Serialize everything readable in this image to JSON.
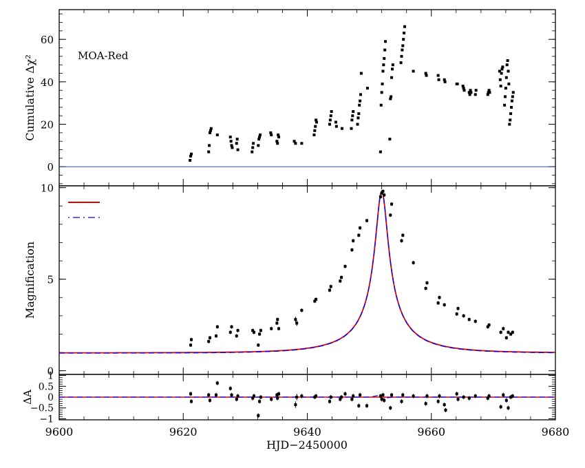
{
  "chart_data": [
    {
      "panel": "top",
      "type": "scatter",
      "annotation": "MOA-Red",
      "ylabel": "Cumulative Δχ²",
      "ylim": [
        -9,
        74
      ],
      "yticks": [
        0,
        20,
        40,
        60
      ],
      "reference_line": 0,
      "points": [
        [
          9621.1,
          3
        ],
        [
          9621.2,
          5
        ],
        [
          9621.3,
          6
        ],
        [
          9624.1,
          7
        ],
        [
          9624.2,
          10
        ],
        [
          9624.3,
          16
        ],
        [
          9624.4,
          17
        ],
        [
          9624.5,
          18
        ],
        [
          9625.5,
          15
        ],
        [
          9627.6,
          14
        ],
        [
          9627.7,
          12
        ],
        [
          9627.8,
          10
        ],
        [
          9627.9,
          9
        ],
        [
          9628.6,
          11
        ],
        [
          9628.7,
          13
        ],
        [
          9628.8,
          8
        ],
        [
          9631.1,
          7
        ],
        [
          9631.2,
          9
        ],
        [
          9631.3,
          11
        ],
        [
          9632.1,
          10
        ],
        [
          9632.2,
          13
        ],
        [
          9632.3,
          14
        ],
        [
          9632.4,
          15
        ],
        [
          9634.1,
          16
        ],
        [
          9634.2,
          15
        ],
        [
          9635.1,
          12
        ],
        [
          9635.2,
          11
        ],
        [
          9635.3,
          15
        ],
        [
          9635.4,
          14
        ],
        [
          9637.9,
          12
        ],
        [
          9638.1,
          11
        ],
        [
          9639.1,
          11
        ],
        [
          9641.1,
          15
        ],
        [
          9641.2,
          17
        ],
        [
          9641.3,
          19
        ],
        [
          9641.4,
          22
        ],
        [
          9641.5,
          21
        ],
        [
          9643.6,
          20
        ],
        [
          9643.7,
          22
        ],
        [
          9643.8,
          24
        ],
        [
          9643.9,
          26
        ],
        [
          9644.6,
          21
        ],
        [
          9644.7,
          19
        ],
        [
          9645.6,
          18
        ],
        [
          9647.1,
          18
        ],
        [
          9647.2,
          22
        ],
        [
          9647.3,
          24
        ],
        [
          9647.4,
          26
        ],
        [
          9648.1,
          20
        ],
        [
          9648.2,
          23
        ],
        [
          9648.3,
          25
        ],
        [
          9648.4,
          29
        ],
        [
          9648.5,
          31
        ],
        [
          9648.6,
          34
        ],
        [
          9648.7,
          44
        ],
        [
          9649.7,
          37
        ],
        [
          9651.8,
          7
        ],
        [
          9651.9,
          29
        ],
        [
          9652.0,
          35
        ],
        [
          9652.1,
          39
        ],
        [
          9652.2,
          45
        ],
        [
          9652.3,
          48
        ],
        [
          9652.4,
          51
        ],
        [
          9652.5,
          55
        ],
        [
          9652.6,
          59
        ],
        [
          9653.3,
          13
        ],
        [
          9653.4,
          32
        ],
        [
          9653.5,
          33
        ],
        [
          9653.6,
          42
        ],
        [
          9653.7,
          46
        ],
        [
          9653.8,
          48
        ],
        [
          9655.1,
          49
        ],
        [
          9655.2,
          52
        ],
        [
          9655.3,
          55
        ],
        [
          9655.4,
          57
        ],
        [
          9655.5,
          60
        ],
        [
          9655.6,
          63
        ],
        [
          9655.7,
          66
        ],
        [
          9657.1,
          45
        ],
        [
          9659.1,
          44
        ],
        [
          9659.2,
          43
        ],
        [
          9661.1,
          43
        ],
        [
          9661.2,
          41
        ],
        [
          9662.1,
          41
        ],
        [
          9662.2,
          40
        ],
        [
          9664.1,
          39
        ],
        [
          9664.2,
          39
        ],
        [
          9665.1,
          38
        ],
        [
          9665.2,
          37
        ],
        [
          9665.3,
          36
        ],
        [
          9666.1,
          35
        ],
        [
          9666.2,
          34
        ],
        [
          9666.3,
          36
        ],
        [
          9666.4,
          35
        ],
        [
          9667.1,
          34
        ],
        [
          9667.2,
          36
        ],
        [
          9669.1,
          34
        ],
        [
          9669.2,
          35
        ],
        [
          9669.3,
          36
        ],
        [
          9669.4,
          35
        ],
        [
          9671.0,
          45
        ],
        [
          9671.1,
          41
        ],
        [
          9671.2,
          38
        ],
        [
          9671.3,
          44
        ],
        [
          9671.4,
          46
        ],
        [
          9671.5,
          47
        ],
        [
          9671.8,
          29
        ],
        [
          9671.9,
          33
        ],
        [
          9672.0,
          37
        ],
        [
          9672.1,
          42
        ],
        [
          9672.2,
          48
        ],
        [
          9672.3,
          50
        ],
        [
          9672.4,
          45
        ],
        [
          9672.5,
          39
        ],
        [
          9672.6,
          20
        ],
        [
          9672.7,
          22
        ],
        [
          9672.8,
          25
        ],
        [
          9672.9,
          28
        ],
        [
          9673.0,
          31
        ],
        [
          9673.1,
          33
        ],
        [
          9673.2,
          35
        ]
      ]
    },
    {
      "panel": "middle",
      "type": "line",
      "ylabel": "Magnification",
      "ylim": [
        -0.2,
        10.1
      ],
      "yticks": [
        0,
        5,
        10
      ],
      "legend_location": "upper-left",
      "model": {
        "t0": 9652.0,
        "u0": 0.1,
        "tE": 10.6,
        "A_max": 9.8
      },
      "series": [
        {
          "style": "solid",
          "color": "#e00000"
        },
        {
          "style": "dashed",
          "color": "#0000ff"
        }
      ],
      "points": [
        [
          9621.2,
          1.4,
          0.1
        ],
        [
          9621.3,
          1.7,
          0.1
        ],
        [
          9624.1,
          1.6,
          0.1
        ],
        [
          9624.3,
          1.8,
          0.1
        ],
        [
          9625.3,
          1.9,
          0.1
        ],
        [
          9625.5,
          2.4,
          0.1
        ],
        [
          9627.6,
          2.1,
          0.1
        ],
        [
          9627.8,
          2.4,
          0.1
        ],
        [
          9628.6,
          1.9,
          0.1
        ],
        [
          9628.8,
          2.2,
          0.1
        ],
        [
          9631.2,
          2.2,
          0.1
        ],
        [
          9631.4,
          2.1,
          0.1
        ],
        [
          9632.1,
          1.4,
          0.1
        ],
        [
          9632.3,
          2.0,
          0.1
        ],
        [
          9632.5,
          2.2,
          0.1
        ],
        [
          9634.2,
          2.3,
          0.1
        ],
        [
          9635.1,
          2.6,
          0.1
        ],
        [
          9635.2,
          2.8,
          0.1
        ],
        [
          9635.4,
          2.3,
          0.1
        ],
        [
          9638.1,
          2.8,
          0.15
        ],
        [
          9638.3,
          2.6,
          0.15
        ],
        [
          9639.1,
          3.3,
          0.1
        ],
        [
          9641.2,
          3.8,
          0.1
        ],
        [
          9641.4,
          3.9,
          0.1
        ],
        [
          9643.6,
          4.4,
          0.1
        ],
        [
          9643.8,
          4.6,
          0.1
        ],
        [
          9645.3,
          4.9,
          0.1
        ],
        [
          9645.5,
          5.1,
          0.1
        ],
        [
          9646.1,
          5.7,
          0.1
        ],
        [
          9647.2,
          6.6,
          0.1
        ],
        [
          9647.4,
          7.1,
          0.1
        ],
        [
          9648.3,
          7.4,
          0.1
        ],
        [
          9648.5,
          7.8,
          0.1
        ],
        [
          9649.6,
          8.2,
          0.1
        ],
        [
          9651.8,
          9.5,
          0.1
        ],
        [
          9652.0,
          9.7,
          0.1
        ],
        [
          9652.2,
          9.8,
          0.1
        ],
        [
          9652.4,
          9.6,
          0.1
        ],
        [
          9653.4,
          8.5,
          0.1
        ],
        [
          9653.6,
          9.1,
          0.1
        ],
        [
          9655.2,
          7.1,
          0.1
        ],
        [
          9655.4,
          7.4,
          0.1
        ],
        [
          9657.1,
          5.9,
          0.1
        ],
        [
          9659.1,
          4.5,
          0.1
        ],
        [
          9659.3,
          4.8,
          0.1
        ],
        [
          9661.1,
          3.7,
          0.1
        ],
        [
          9661.3,
          4.0,
          0.1
        ],
        [
          9662.1,
          3.6,
          0.1
        ],
        [
          9664.1,
          3.1,
          0.1
        ],
        [
          9664.3,
          3.4,
          0.1
        ],
        [
          9665.2,
          3.0,
          0.1
        ],
        [
          9666.1,
          2.8,
          0.1
        ],
        [
          9667.1,
          2.7,
          0.1
        ],
        [
          9669.1,
          2.4,
          0.1
        ],
        [
          9669.3,
          2.5,
          0.1
        ],
        [
          9671.2,
          2.1,
          0.1
        ],
        [
          9671.6,
          2.3,
          0.1
        ],
        [
          9672.1,
          1.8,
          0.1
        ],
        [
          9672.4,
          2.1,
          0.1
        ],
        [
          9672.8,
          2.0,
          0.1
        ],
        [
          9673.1,
          2.1,
          0.1
        ]
      ]
    },
    {
      "panel": "bottom",
      "type": "scatter",
      "ylabel": "ΔA",
      "ylim": [
        -1.05,
        1.05
      ],
      "yticks": [
        -1,
        -0.5,
        0,
        0.5,
        1
      ],
      "yticklabels": [
        "−1",
        "−0.5",
        "0",
        "0.5",
        "1"
      ],
      "points": [
        [
          9621.2,
          0.15,
          0.1
        ],
        [
          9621.3,
          -0.2,
          0.1
        ],
        [
          9624.1,
          0.1,
          0.1
        ],
        [
          9624.3,
          -0.15,
          0.1
        ],
        [
          9625.3,
          0.1,
          0.1
        ],
        [
          9625.5,
          0.65,
          0.1
        ],
        [
          9627.6,
          0.4,
          0.1
        ],
        [
          9627.8,
          0.1,
          0.1
        ],
        [
          9628.6,
          -0.1,
          0.1
        ],
        [
          9628.8,
          0.05,
          0.1
        ],
        [
          9631.2,
          -0.05,
          0.1
        ],
        [
          9631.4,
          0.05,
          0.1
        ],
        [
          9632.1,
          -0.85,
          0.1
        ],
        [
          9632.3,
          -0.2,
          0.1
        ],
        [
          9632.5,
          0.0,
          0.1
        ],
        [
          9634.2,
          -0.1,
          0.1
        ],
        [
          9635.1,
          0.1,
          0.1
        ],
        [
          9635.2,
          -0.05,
          0.1
        ],
        [
          9635.4,
          0.15,
          0.1
        ],
        [
          9638.1,
          -0.35,
          0.15
        ],
        [
          9638.3,
          0.0,
          0.15
        ],
        [
          9639.1,
          0.05,
          0.1
        ],
        [
          9641.2,
          0.0,
          0.1
        ],
        [
          9641.4,
          0.05,
          0.1
        ],
        [
          9643.6,
          -0.2,
          0.1
        ],
        [
          9643.8,
          0.0,
          0.1
        ],
        [
          9645.3,
          -0.1,
          0.1
        ],
        [
          9645.5,
          0.0,
          0.1
        ],
        [
          9646.1,
          0.15,
          0.1
        ],
        [
          9647.2,
          -0.1,
          0.1
        ],
        [
          9647.4,
          0.05,
          0.1
        ],
        [
          9648.3,
          -0.4,
          0.1
        ],
        [
          9648.5,
          0.1,
          0.1
        ],
        [
          9649.6,
          -0.4,
          0.1
        ],
        [
          9651.8,
          0.05,
          0.1
        ],
        [
          9652.0,
          -0.1,
          0.1
        ],
        [
          9652.2,
          0.1,
          0.1
        ],
        [
          9652.4,
          -0.15,
          0.1
        ],
        [
          9653.4,
          -0.5,
          0.1
        ],
        [
          9653.6,
          0.1,
          0.1
        ],
        [
          9655.2,
          -0.2,
          0.1
        ],
        [
          9655.4,
          0.1,
          0.1
        ],
        [
          9657.1,
          0.05,
          0.1
        ],
        [
          9659.1,
          -0.3,
          0.1
        ],
        [
          9659.3,
          0.05,
          0.1
        ],
        [
          9661.1,
          -0.2,
          0.1
        ],
        [
          9661.3,
          0.05,
          0.1
        ],
        [
          9662.1,
          -0.35,
          0.1
        ],
        [
          9662.3,
          -0.6,
          0.1
        ],
        [
          9664.1,
          0.15,
          0.1
        ],
        [
          9664.3,
          -0.1,
          0.1
        ],
        [
          9665.2,
          0.0,
          0.1
        ],
        [
          9666.1,
          -0.05,
          0.1
        ],
        [
          9667.1,
          0.05,
          0.1
        ],
        [
          9669.1,
          -0.05,
          0.1
        ],
        [
          9669.3,
          0.05,
          0.1
        ],
        [
          9671.2,
          -0.45,
          0.1
        ],
        [
          9671.6,
          0.1,
          0.1
        ],
        [
          9672.1,
          -0.15,
          0.1
        ],
        [
          9672.4,
          -0.5,
          0.1
        ],
        [
          9672.8,
          0.0,
          0.1
        ],
        [
          9673.1,
          0.05,
          0.1
        ]
      ]
    }
  ],
  "x_axis": {
    "xlabel": "HJD−2450000",
    "xlim": [
      9600,
      9680
    ],
    "xticks": [
      9600,
      9620,
      9640,
      9660,
      9680
    ]
  }
}
